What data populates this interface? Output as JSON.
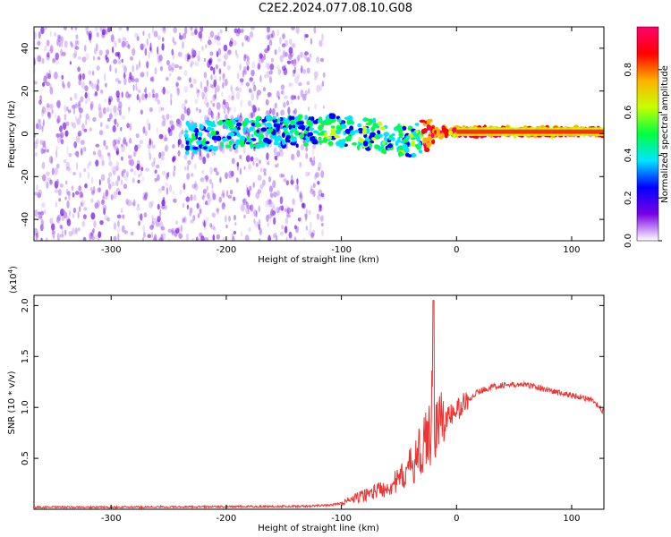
{
  "title": "C2E2.2024.077.08.10.G08",
  "chart_data": [
    {
      "type": "heatmap",
      "xlabel": "Height of straight line (km)",
      "ylabel": "Frequency (Hz)",
      "xlim": [
        -367,
        128
      ],
      "ylim": [
        -50,
        50
      ],
      "xticks": [
        -300,
        -200,
        -100,
        0,
        100
      ],
      "yticks": [
        -40,
        -20,
        0,
        20,
        40
      ],
      "xtick_labels": [
        "-300",
        "-200",
        "-100",
        "0",
        "100"
      ],
      "ytick_labels": [
        "-40",
        "-20",
        "0",
        "20",
        "40"
      ],
      "colorbar": {
        "label": "Normalized spectral amplitude",
        "range": [
          0,
          1
        ],
        "ticks": [
          0.0,
          0.2,
          0.4,
          0.6,
          0.8
        ],
        "tick_labels": [
          "0.0",
          "0.2",
          "0.4",
          "0.6",
          "0.8"
        ],
        "colors": [
          "#ffffff",
          "#7a00e6",
          "#0000ff",
          "#00e5ff",
          "#00ff40",
          "#c8ff00",
          "#ffb000",
          "#ff0000",
          "#ff0070"
        ]
      },
      "ridge": {
        "x": [
          -235,
          -200,
          -150,
          -120,
          -100,
          -80,
          -60,
          -40,
          -30,
          -20,
          -10,
          0,
          50,
          128
        ],
        "y": [
          -2,
          0,
          1,
          2,
          1,
          0,
          -2,
          -4,
          -1,
          0,
          1,
          1,
          1,
          1
        ]
      },
      "noise_edge_x": -115,
      "grid": false
    },
    {
      "type": "line",
      "xlabel": "Height of straight line (km)",
      "ylabel": "SNR (10 * v/v)",
      "multiplier_label": "(x10",
      "multiplier_exp": "4",
      "multiplier_close": ")",
      "xlim": [
        -367,
        128
      ],
      "ylim": [
        0,
        2.1
      ],
      "xticks": [
        -300,
        -200,
        -100,
        0,
        100
      ],
      "yticks": [
        0.5,
        1.0,
        1.5,
        2.0
      ],
      "xtick_labels": [
        "-300",
        "-200",
        "-100",
        "0",
        "100"
      ],
      "ytick_labels": [
        "0.5",
        "1.0",
        "1.5",
        "2.0"
      ],
      "series": [
        {
          "color": "#ee3333",
          "x": [
            -367,
            -300,
            -200,
            -130,
            -110,
            -100,
            -90,
            -80,
            -70,
            -60,
            -50,
            -45,
            -40,
            -35,
            -30,
            -25,
            -22,
            -20,
            -19,
            -18,
            -15,
            -10,
            -5,
            0,
            5,
            10,
            20,
            30,
            40,
            50,
            60,
            70,
            80,
            90,
            100,
            110,
            120,
            128
          ],
          "y": [
            0.02,
            0.02,
            0.025,
            0.03,
            0.04,
            0.06,
            0.1,
            0.14,
            0.18,
            0.22,
            0.28,
            0.35,
            0.42,
            0.5,
            0.6,
            0.7,
            0.78,
            2.05,
            0.8,
            0.82,
            0.85,
            0.88,
            0.92,
            0.97,
            1.02,
            1.08,
            1.16,
            1.2,
            1.22,
            1.22,
            1.22,
            1.2,
            1.17,
            1.14,
            1.12,
            1.1,
            1.05,
            0.95
          ]
        }
      ],
      "grid": false
    }
  ]
}
